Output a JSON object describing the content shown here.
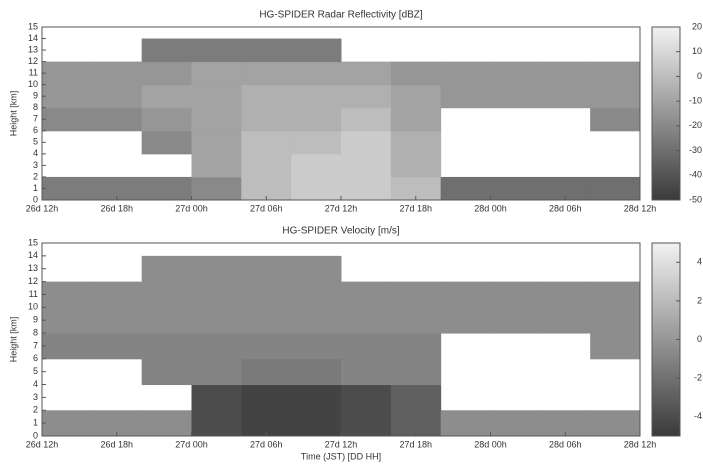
{
  "chart_data": [
    {
      "type": "heatmap",
      "title": "HG-SPIDER Radar Reflectivity [dBZ]",
      "y_label": "Height [km]",
      "xlim": [
        0,
        48
      ],
      "xticks": [
        {
          "value": 0,
          "label": "26d 12h"
        },
        {
          "value": 6,
          "label": "26d 18h"
        },
        {
          "value": 12,
          "label": "27d 00h"
        },
        {
          "value": 18,
          "label": "27d 06h"
        },
        {
          "value": 24,
          "label": "27d 12h"
        },
        {
          "value": 30,
          "label": "27d 18h"
        },
        {
          "value": 36,
          "label": "28d 00h"
        },
        {
          "value": 42,
          "label": "28d 06h"
        },
        {
          "value": 48,
          "label": "28d 12h"
        }
      ],
      "ylim": [
        0,
        15
      ],
      "yticks": [
        0,
        1,
        2,
        3,
        4,
        5,
        6,
        7,
        8,
        9,
        10,
        11,
        12,
        13,
        14,
        15
      ],
      "x_edges": [
        0,
        4,
        8,
        12,
        16,
        20,
        24,
        28,
        32,
        36,
        40,
        44,
        48
      ],
      "y_edges": [
        0,
        2,
        4,
        6,
        8,
        10,
        12,
        14,
        15
      ],
      "z": [
        [
          -25,
          -25,
          -25,
          -20,
          0,
          5,
          5,
          0,
          -30,
          -30,
          -30,
          -30
        ],
        [
          null,
          null,
          null,
          -10,
          0,
          5,
          5,
          -5,
          null,
          null,
          null,
          null
        ],
        [
          null,
          null,
          -20,
          -10,
          0,
          0,
          5,
          -5,
          null,
          null,
          null,
          null
        ],
        [
          -20,
          -20,
          -15,
          -10,
          -5,
          -5,
          0,
          -10,
          null,
          null,
          null,
          -20
        ],
        [
          -15,
          -15,
          -10,
          -10,
          -5,
          -5,
          -5,
          -10,
          -15,
          -15,
          -15,
          -15
        ],
        [
          -15,
          -15,
          -15,
          -10,
          -10,
          -10,
          -10,
          -15,
          -15,
          -15,
          -15,
          -15
        ],
        [
          null,
          null,
          -25,
          -25,
          -25,
          -25,
          null,
          null,
          null,
          null,
          null,
          null
        ],
        [
          null,
          null,
          null,
          null,
          null,
          null,
          null,
          null,
          null,
          null,
          null,
          null
        ]
      ],
      "clim": [
        -50,
        20
      ],
      "cticks": [
        -50,
        -40,
        -30,
        -20,
        -10,
        0,
        10,
        20
      ],
      "colormap": [
        "#3a3a3a",
        "#f2f2f2"
      ]
    },
    {
      "type": "heatmap",
      "title": "HG-SPIDER Velocity [m/s]",
      "y_label": "Height [km]",
      "x_label": "Time (JST) [DD HH]",
      "xlim": [
        0,
        48
      ],
      "xticks": [
        {
          "value": 0,
          "label": "26d 12h"
        },
        {
          "value": 6,
          "label": "26d 18h"
        },
        {
          "value": 12,
          "label": "27d 00h"
        },
        {
          "value": 18,
          "label": "27d 06h"
        },
        {
          "value": 24,
          "label": "27d 12h"
        },
        {
          "value": 30,
          "label": "27d 18h"
        },
        {
          "value": 36,
          "label": "28d 00h"
        },
        {
          "value": 42,
          "label": "28d 06h"
        },
        {
          "value": 48,
          "label": "28d 12h"
        }
      ],
      "ylim": [
        0,
        15
      ],
      "yticks": [
        0,
        1,
        2,
        3,
        4,
        5,
        6,
        7,
        8,
        9,
        10,
        11,
        12,
        13,
        14,
        15
      ],
      "x_edges": [
        0,
        4,
        8,
        12,
        16,
        20,
        24,
        28,
        32,
        36,
        40,
        44,
        48
      ],
      "y_edges": [
        0,
        2,
        4,
        6,
        8,
        10,
        12,
        14,
        15
      ],
      "z": [
        [
          -0.5,
          -0.5,
          -0.5,
          -4,
          -4.5,
          -4.5,
          -4,
          -3,
          -0.5,
          -0.5,
          -0.5,
          -0.5
        ],
        [
          null,
          null,
          null,
          -4,
          -4.5,
          -4.5,
          -4,
          -3,
          null,
          null,
          null,
          null
        ],
        [
          null,
          null,
          -1,
          -1,
          -1.5,
          -1.5,
          -1,
          -1,
          null,
          null,
          null,
          null
        ],
        [
          -1,
          -1,
          -1,
          -1,
          -1,
          -1,
          -1,
          -1,
          null,
          null,
          null,
          -0.5
        ],
        [
          -0.5,
          -0.5,
          -0.5,
          -0.5,
          -0.5,
          -0.5,
          -0.5,
          -0.5,
          -0.5,
          -0.5,
          -0.5,
          -0.5
        ],
        [
          -0.5,
          -0.5,
          -0.5,
          -0.5,
          -0.5,
          -0.5,
          -0.5,
          -0.5,
          -0.5,
          -0.5,
          -0.5,
          -0.5
        ],
        [
          null,
          null,
          -0.5,
          -0.5,
          -0.5,
          -0.5,
          null,
          null,
          null,
          null,
          null,
          null
        ],
        [
          null,
          null,
          null,
          null,
          null,
          null,
          null,
          null,
          null,
          null,
          null,
          null
        ]
      ],
      "clim": [
        -5,
        5
      ],
      "cticks": [
        -4,
        -2,
        0,
        2,
        4
      ],
      "colormap": [
        "#3a3a3a",
        "#f2f2f2"
      ]
    }
  ]
}
